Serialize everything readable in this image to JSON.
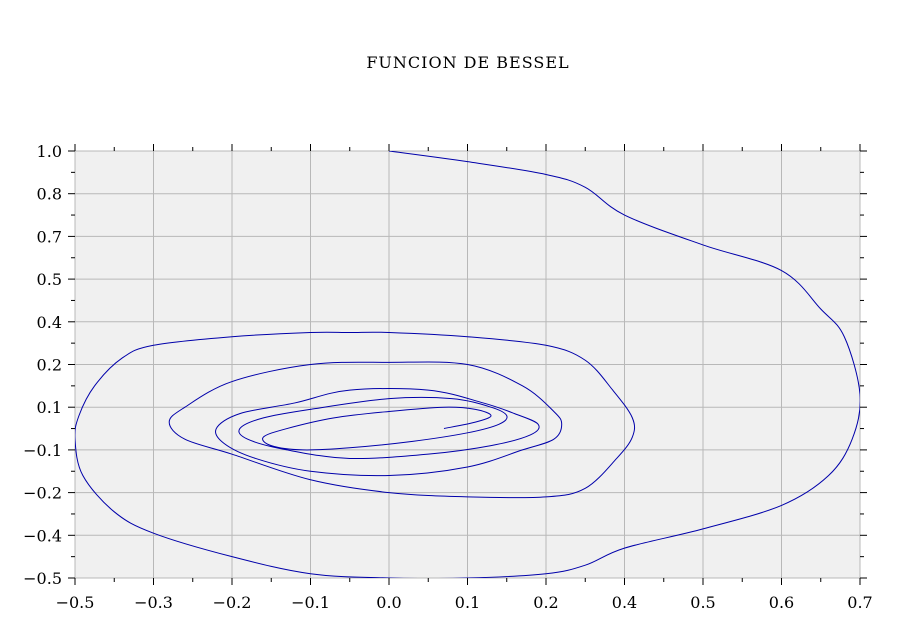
{
  "chart_data": {
    "type": "line",
    "title": "FUNCION DE BESSEL",
    "xlabel": "",
    "ylabel": "",
    "xlim": [
      -0.5,
      0.7
    ],
    "ylim": [
      -0.5,
      1.0
    ],
    "grid": true,
    "x_ticks": [
      -0.5,
      -0.3,
      -0.2,
      -0.1,
      0.0,
      0.1,
      0.2,
      0.4,
      0.5,
      0.6,
      0.7
    ],
    "x_tick_labels": [
      "−0.5",
      "−0.3",
      "−0.2",
      "−0.1",
      "0.0",
      "0.1",
      "0.2",
      "0.4",
      "0.5",
      "0.6",
      "0.7"
    ],
    "y_ticks": [
      1.0,
      0.8,
      0.7,
      0.5,
      0.4,
      0.2,
      0.1,
      -0.1,
      -0.2,
      -0.4,
      -0.5
    ],
    "y_tick_labels": [
      "1.0",
      "0.8",
      "0.7",
      "0.5",
      "0.4",
      "0.2",
      "0.1",
      "−0.1",
      "−0.2",
      "−0.4",
      "−0.5"
    ],
    "series": [
      {
        "color": "#0000aa",
        "x": [
          0.0,
          0.1,
          0.2,
          0.3,
          0.4,
          0.5,
          0.6,
          0.65,
          0.68,
          0.7,
          0.69,
          0.66,
          0.6,
          0.5,
          0.4,
          0.3,
          0.2,
          0.1,
          0.0,
          -0.1,
          -0.2,
          -0.3,
          -0.4,
          -0.48,
          -0.5,
          -0.49,
          -0.45,
          -0.38,
          -0.3,
          -0.2,
          -0.1,
          -0.05,
          0.0,
          0.1,
          0.2,
          0.3,
          0.37,
          0.41,
          0.41,
          0.38,
          0.3,
          0.2,
          0.1,
          0.0,
          -0.1,
          -0.2,
          -0.26,
          -0.28,
          -0.26,
          -0.2,
          -0.1,
          0.0,
          0.1,
          0.17,
          0.22,
          0.24,
          0.22,
          0.17,
          0.1,
          0.0,
          -0.1,
          -0.17,
          -0.21,
          -0.22,
          -0.19,
          -0.12,
          -0.05,
          0.05,
          0.12,
          0.16,
          0.19,
          0.18,
          0.13,
          0.05,
          -0.05,
          -0.13,
          -0.18,
          -0.19,
          -0.16,
          -0.1,
          0.0,
          0.08,
          0.13,
          0.15,
          0.14,
          0.1,
          0.03,
          -0.05,
          -0.11,
          -0.15,
          -0.16,
          -0.13,
          -0.07,
          0.0,
          0.07,
          0.11,
          0.13,
          0.11,
          0.07
        ],
        "y": [
          1.0,
          0.95,
          0.89,
          0.83,
          0.75,
          0.66,
          0.54,
          0.43,
          0.33,
          0.13,
          -0.05,
          -0.16,
          -0.26,
          -0.37,
          -0.43,
          -0.47,
          -0.49,
          -0.5,
          -0.5,
          -0.49,
          -0.45,
          -0.39,
          -0.29,
          -0.16,
          -0.05,
          0.06,
          0.15,
          0.23,
          0.29,
          0.33,
          0.35,
          0.35,
          0.35,
          0.33,
          0.29,
          0.22,
          0.14,
          0.05,
          -0.04,
          -0.12,
          -0.19,
          -0.22,
          -0.22,
          -0.2,
          -0.17,
          -0.11,
          -0.05,
          0.03,
          0.1,
          0.16,
          0.2,
          0.21,
          0.2,
          0.15,
          0.08,
          0.02,
          -0.05,
          -0.1,
          -0.14,
          -0.16,
          -0.15,
          -0.12,
          -0.07,
          0.0,
          0.07,
          0.11,
          0.14,
          0.14,
          0.11,
          0.07,
          0.02,
          -0.03,
          -0.08,
          -0.11,
          -0.12,
          -0.1,
          -0.05,
          0.0,
          0.05,
          0.09,
          0.12,
          0.12,
          0.1,
          0.06,
          0.02,
          -0.02,
          -0.06,
          -0.09,
          -0.1,
          -0.08,
          -0.04,
          0.0,
          0.05,
          0.08,
          0.1,
          0.09,
          0.06,
          0.03,
          0.0
        ]
      }
    ]
  }
}
